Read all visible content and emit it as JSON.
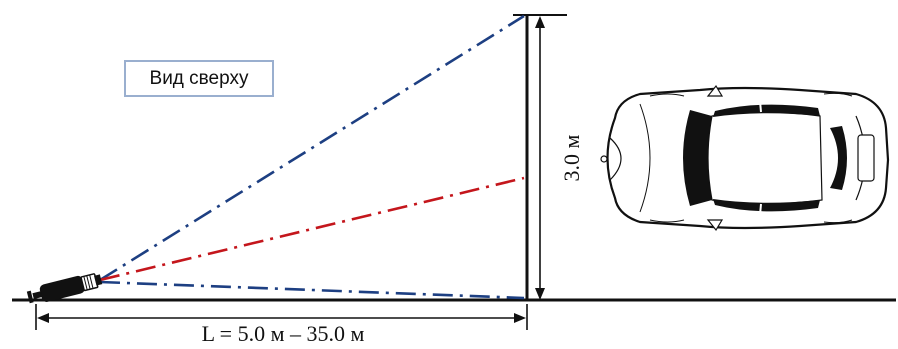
{
  "view_label": "Вид сверху",
  "dimensions": {
    "length_label": "L = 5.0 м – 35.0 м",
    "height_label": "3.0 м"
  },
  "colors": {
    "ray_blue": "#1d3f82",
    "ray_red": "#c4161c",
    "line": "#111111",
    "label_border": "#9aafcf"
  },
  "icons": {
    "camera": "camera-icon",
    "car": "car-top-view-icon"
  }
}
